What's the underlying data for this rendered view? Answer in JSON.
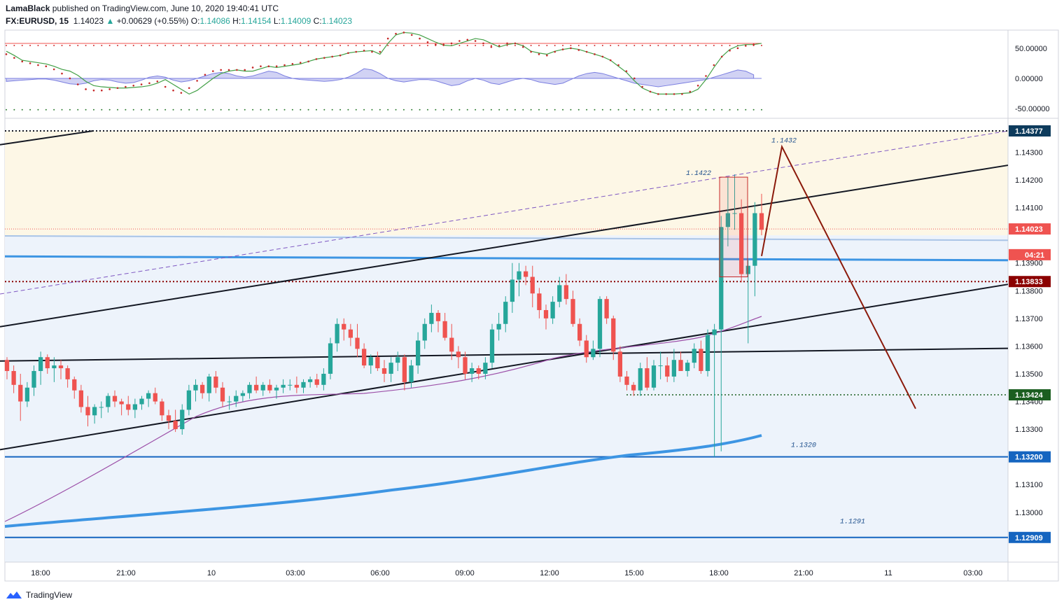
{
  "header": {
    "author": "LamaBlack",
    "published_text": "published on TradingView.com, June 10, 2020 19:40:41 UTC",
    "symbol": "FX:EURUSD, 15",
    "last": "1.14023",
    "change": "+0.00629 (+0.55%)",
    "open_label": "O:",
    "open": "1.14086",
    "high_label": "H:",
    "high": "1.14154",
    "low_label": "L:",
    "low": "1.14009",
    "close_label": "C:",
    "close": "1.14023"
  },
  "footer": {
    "brand": "TradingView"
  },
  "colors": {
    "up": "#26a69a",
    "down": "#ef5350",
    "zone": "#fdf7e6",
    "zone_blue": "#edf3fb",
    "trend": "#131722",
    "arrow": "#8b1a0b",
    "blue_line": "#3d95e3",
    "ma": "#9c4fa8"
  },
  "chart_data": [
    {
      "type": "candlestick",
      "symbol": "FX:EURUSD",
      "timeframe": "15",
      "ylim": [
        1.1282,
        1.1442
      ],
      "y_ticks": [
        "1.13000",
        "1.13100",
        "1.13300",
        "1.13400",
        "1.13500",
        "1.13600",
        "1.13700",
        "1.13800",
        "1.13900",
        "1.14100",
        "1.14200",
        "1.14300"
      ],
      "x_ticks": [
        "18:00",
        "21:00",
        "10",
        "03:00",
        "06:00",
        "09:00",
        "12:00",
        "15:00",
        "18:00",
        "21:00",
        "11",
        "03:00"
      ],
      "price_labels": [
        {
          "text": "1.14377",
          "value": 1.14377,
          "color": "#0d3b5c"
        },
        {
          "text": "1.14023",
          "value": 1.14023,
          "color": "#ef5350"
        },
        {
          "text": "04:21",
          "value": 1.1393,
          "color": "#ef5350"
        },
        {
          "text": "1.13833",
          "value": 1.13833,
          "color": "#8b0000"
        },
        {
          "text": "1.13424",
          "value": 1.13424,
          "color": "#1b5e20"
        },
        {
          "text": "1.13200",
          "value": 1.132,
          "color": "#1565c0"
        },
        {
          "text": "1.12909",
          "value": 1.12909,
          "color": "#1565c0"
        }
      ],
      "annotations": [
        {
          "text": "1.1432",
          "value": 1.1432
        },
        {
          "text": "1.1422",
          "value": 1.1422
        },
        {
          "text": "1.1320",
          "value": 1.132
        },
        {
          "text": "1.1291",
          "value": 1.1291
        }
      ],
      "candles": [
        [
          1.1355,
          1.1356,
          1.1348,
          1.1351
        ],
        [
          1.1351,
          1.1353,
          1.1343,
          1.1346
        ],
        [
          1.1346,
          1.135,
          1.1333,
          1.134
        ],
        [
          1.134,
          1.1347,
          1.1338,
          1.1345
        ],
        [
          1.1345,
          1.1353,
          1.1342,
          1.1351
        ],
        [
          1.1351,
          1.1358,
          1.1346,
          1.1356
        ],
        [
          1.1356,
          1.1357,
          1.135,
          1.1352
        ],
        [
          1.1352,
          1.1356,
          1.1347,
          1.1353
        ],
        [
          1.1353,
          1.1355,
          1.1348,
          1.1352
        ],
        [
          1.1352,
          1.1353,
          1.1345,
          1.1348
        ],
        [
          1.1348,
          1.1349,
          1.1341,
          1.1344
        ],
        [
          1.1344,
          1.1346,
          1.1336,
          1.1338
        ],
        [
          1.1338,
          1.1342,
          1.1331,
          1.1335
        ],
        [
          1.1335,
          1.1339,
          1.1332,
          1.1338
        ],
        [
          1.1338,
          1.134,
          1.1334,
          1.1338
        ],
        [
          1.1338,
          1.1343,
          1.1336,
          1.1342
        ],
        [
          1.1342,
          1.1344,
          1.1338,
          1.134
        ],
        [
          1.134,
          1.1341,
          1.1335,
          1.1339
        ],
        [
          1.1339,
          1.1342,
          1.1335,
          1.1337
        ],
        [
          1.1337,
          1.1341,
          1.1334,
          1.1339
        ],
        [
          1.1339,
          1.1342,
          1.1337,
          1.1341
        ],
        [
          1.1341,
          1.1344,
          1.1338,
          1.1343
        ],
        [
          1.1343,
          1.1345,
          1.1339,
          1.134
        ],
        [
          1.134,
          1.1341,
          1.1333,
          1.1335
        ],
        [
          1.1335,
          1.1337,
          1.133,
          1.1333
        ],
        [
          1.1333,
          1.1337,
          1.1329,
          1.133
        ],
        [
          1.133,
          1.1339,
          1.1328,
          1.1337
        ],
        [
          1.1337,
          1.1346,
          1.1335,
          1.1344
        ],
        [
          1.1344,
          1.1348,
          1.134,
          1.1346
        ],
        [
          1.1346,
          1.1347,
          1.1341,
          1.1343
        ],
        [
          1.1343,
          1.135,
          1.134,
          1.1349
        ],
        [
          1.1349,
          1.1351,
          1.1343,
          1.1345
        ],
        [
          1.1345,
          1.1347,
          1.1338,
          1.134
        ],
        [
          1.134,
          1.1342,
          1.1337,
          1.134
        ],
        [
          1.134,
          1.1344,
          1.1338,
          1.1342
        ],
        [
          1.1342,
          1.1344,
          1.134,
          1.1343
        ],
        [
          1.1343,
          1.1347,
          1.1341,
          1.1346
        ],
        [
          1.1346,
          1.1349,
          1.1343,
          1.1344
        ],
        [
          1.1344,
          1.1347,
          1.1342,
          1.1346
        ],
        [
          1.1346,
          1.1348,
          1.1343,
          1.1344
        ],
        [
          1.1344,
          1.1346,
          1.1341,
          1.1345
        ],
        [
          1.1345,
          1.1348,
          1.1343,
          1.1346
        ],
        [
          1.1346,
          1.1348,
          1.1344,
          1.1346
        ],
        [
          1.1346,
          1.1349,
          1.1343,
          1.1345
        ],
        [
          1.1345,
          1.1348,
          1.1343,
          1.1347
        ],
        [
          1.1347,
          1.1349,
          1.1345,
          1.1348
        ],
        [
          1.1348,
          1.135,
          1.1345,
          1.1346
        ],
        [
          1.1346,
          1.1352,
          1.1344,
          1.135
        ],
        [
          1.135,
          1.1363,
          1.1348,
          1.1361
        ],
        [
          1.1361,
          1.137,
          1.1358,
          1.1368
        ],
        [
          1.1368,
          1.137,
          1.1362,
          1.1366
        ],
        [
          1.1366,
          1.1368,
          1.136,
          1.1363
        ],
        [
          1.1363,
          1.1368,
          1.1356,
          1.1359
        ],
        [
          1.1359,
          1.1361,
          1.1352,
          1.1353
        ],
        [
          1.1353,
          1.1357,
          1.135,
          1.1356
        ],
        [
          1.1356,
          1.1358,
          1.1351,
          1.1352
        ],
        [
          1.1352,
          1.1355,
          1.1347,
          1.135
        ],
        [
          1.135,
          1.1356,
          1.1347,
          1.1354
        ],
        [
          1.1354,
          1.1358,
          1.1351,
          1.1356
        ],
        [
          1.1356,
          1.1357,
          1.1344,
          1.1347
        ],
        [
          1.1347,
          1.1355,
          1.1345,
          1.1353
        ],
        [
          1.1353,
          1.1365,
          1.135,
          1.1362
        ],
        [
          1.1362,
          1.137,
          1.1359,
          1.1368
        ],
        [
          1.1368,
          1.1375,
          1.1365,
          1.1372
        ],
        [
          1.1372,
          1.1373,
          1.1365,
          1.1369
        ],
        [
          1.1369,
          1.1372,
          1.1362,
          1.1363
        ],
        [
          1.1363,
          1.1368,
          1.1355,
          1.1358
        ],
        [
          1.1358,
          1.136,
          1.1352,
          1.1356
        ],
        [
          1.1356,
          1.1358,
          1.1348,
          1.135
        ],
        [
          1.135,
          1.1354,
          1.1347,
          1.1352
        ],
        [
          1.1352,
          1.1353,
          1.1348,
          1.135
        ],
        [
          1.135,
          1.1356,
          1.1348,
          1.1354
        ],
        [
          1.1354,
          1.1368,
          1.1352,
          1.1366
        ],
        [
          1.1366,
          1.1372,
          1.1362,
          1.1368
        ],
        [
          1.1368,
          1.1378,
          1.1365,
          1.1376
        ],
        [
          1.1376,
          1.139,
          1.1372,
          1.1384
        ],
        [
          1.1384,
          1.139,
          1.1378,
          1.1387
        ],
        [
          1.1387,
          1.1389,
          1.1382,
          1.1385
        ],
        [
          1.1385,
          1.1389,
          1.1374,
          1.1379
        ],
        [
          1.1379,
          1.1381,
          1.137,
          1.1373
        ],
        [
          1.1373,
          1.1375,
          1.1366,
          1.137
        ],
        [
          1.137,
          1.1378,
          1.1368,
          1.1376
        ],
        [
          1.1376,
          1.1385,
          1.1374,
          1.1382
        ],
        [
          1.1382,
          1.1386,
          1.1375,
          1.1377
        ],
        [
          1.1377,
          1.138,
          1.1367,
          1.1368
        ],
        [
          1.1368,
          1.137,
          1.136,
          1.1362
        ],
        [
          1.1362,
          1.1364,
          1.1354,
          1.1356
        ],
        [
          1.1356,
          1.1362,
          1.1355,
          1.1359
        ],
        [
          1.1359,
          1.1378,
          1.1356,
          1.1377
        ],
        [
          1.1377,
          1.1378,
          1.1368,
          1.137
        ],
        [
          1.137,
          1.1371,
          1.1355,
          1.1358
        ],
        [
          1.1358,
          1.136,
          1.1347,
          1.1349
        ],
        [
          1.1349,
          1.1351,
          1.1344,
          1.1346
        ],
        [
          1.1346,
          1.1347,
          1.1342,
          1.1344
        ],
        [
          1.1344,
          1.1354,
          1.1342,
          1.1352
        ],
        [
          1.1352,
          1.1356,
          1.1344,
          1.1345
        ],
        [
          1.1345,
          1.1355,
          1.1344,
          1.1353
        ],
        [
          1.1353,
          1.1358,
          1.1348,
          1.1353
        ],
        [
          1.1353,
          1.1356,
          1.1347,
          1.1349
        ],
        [
          1.1349,
          1.1359,
          1.1347,
          1.1355
        ],
        [
          1.1355,
          1.1358,
          1.1352,
          1.1351
        ],
        [
          1.1351,
          1.1355,
          1.1349,
          1.1354
        ],
        [
          1.1354,
          1.1361,
          1.1352,
          1.1359
        ],
        [
          1.1359,
          1.1362,
          1.135,
          1.1351
        ],
        [
          1.1351,
          1.1366,
          1.1349,
          1.1364
        ],
        [
          1.1364,
          1.1368,
          1.132,
          1.1366
        ],
        [
          1.1366,
          1.1407,
          1.1322,
          1.1403
        ],
        [
          1.1403,
          1.1421,
          1.1396,
          1.1408
        ],
        [
          1.1408,
          1.1422,
          1.1402,
          1.1408
        ],
        [
          1.1408,
          1.1413,
          1.1383,
          1.1386
        ],
        [
          1.1386,
          1.1391,
          1.1361,
          1.1389
        ],
        [
          1.1389,
          1.1412,
          1.1378,
          1.1408
        ],
        [
          1.1408,
          1.1415,
          1.14,
          1.1402
        ]
      ],
      "drawings": [
        {
          "type": "trendline",
          "x": [
            0,
            133
          ],
          "y": [
            1.14327,
            1.14377
          ]
        },
        {
          "type": "trendline",
          "x": [
            0,
            1440
          ],
          "y": [
            1.1367,
            1.14253
          ]
        },
        {
          "type": "trendline",
          "x": [
            0,
            1440
          ],
          "y": [
            1.13226,
            1.13823
          ]
        },
        {
          "type": "trendline",
          "x": [
            0,
            1440
          ],
          "y": [
            1.13546,
            1.13592
          ]
        },
        {
          "type": "dashed_trendline",
          "x": [
            0,
            1440
          ],
          "y": [
            1.13788,
            1.14377
          ]
        }
      ]
    },
    {
      "type": "line",
      "panel": "oscillator",
      "y_ticks": [
        "50.00000",
        "0.00000",
        "-50.00000"
      ],
      "ylim": [
        -65,
        80
      ],
      "upper_band": 58,
      "lower_band": -52,
      "series": [
        {
          "color": "#43a047",
          "values": [
            45,
            38,
            30,
            28,
            26,
            24,
            20,
            15,
            12,
            5,
            -5,
            -12,
            -14,
            -15,
            -16,
            -16,
            -15,
            -14,
            -12,
            -8,
            -2,
            -10,
            -18,
            -26,
            -20,
            -10,
            0,
            8,
            12,
            14,
            12,
            12,
            16,
            20,
            18,
            20,
            22,
            24,
            28,
            32,
            34,
            36,
            38,
            42,
            44,
            45,
            46,
            40,
            58,
            72,
            76,
            75,
            72,
            66,
            60,
            55,
            54,
            58,
            62,
            66,
            64,
            58,
            52,
            56,
            58,
            54,
            45,
            42,
            40,
            45,
            48,
            50,
            48,
            44,
            40,
            36,
            30,
            20,
            10,
            -4,
            -16,
            -22,
            -26,
            -26,
            -26,
            -25,
            -24,
            -18,
            -2,
            18,
            36,
            48,
            54,
            56,
            56,
            58
          ]
        },
        {
          "color": "#c62828",
          "values": [
            40,
            34,
            28,
            25,
            22,
            20,
            15,
            8,
            0,
            -10,
            -18,
            -20,
            -20,
            -18,
            -16,
            -14,
            -12,
            -10,
            -8,
            -5,
            -14,
            -20,
            -24,
            -16,
            -4,
            6,
            12,
            14,
            14,
            14,
            14,
            18,
            20,
            20,
            20,
            22,
            24,
            26,
            28,
            32,
            34,
            36,
            38,
            42,
            44,
            46,
            44,
            44,
            66,
            74,
            76,
            72,
            66,
            60,
            56,
            56,
            58,
            62,
            64,
            62,
            58,
            52,
            54,
            58,
            58,
            52,
            44,
            40,
            38,
            44,
            48,
            50,
            47,
            44,
            40,
            36,
            30,
            22,
            12,
            0,
            -14,
            -22,
            -26,
            -26,
            -26,
            -26,
            -22,
            -12,
            4,
            22,
            36,
            46,
            50,
            54,
            56
          ]
        },
        {
          "type": "area",
          "color": "#7b7fe0",
          "values": [
            -5,
            -4,
            -3,
            -2,
            -1,
            -1,
            -3,
            -6,
            -9,
            -10,
            -8,
            -4,
            -2,
            -3,
            -6,
            -8,
            -7,
            -3,
            2,
            4,
            2,
            -3,
            -6,
            -4,
            0,
            4,
            8,
            10,
            8,
            4,
            2,
            4,
            8,
            12,
            10,
            4,
            0,
            -2,
            -3,
            -4,
            -5,
            -4,
            -2,
            2,
            8,
            16,
            14,
            8,
            0,
            -4,
            -6,
            -4,
            -2,
            -2,
            -4,
            -8,
            -12,
            -10,
            -4,
            0,
            -3,
            -8,
            -10,
            -6,
            -2,
            0,
            -2,
            -6,
            -8,
            -10,
            -8,
            -2,
            4,
            8,
            10,
            8,
            4,
            0,
            -4,
            -8,
            -10,
            -12,
            -14,
            -12,
            -10,
            -8,
            -6,
            -4,
            -2,
            2,
            6,
            10,
            14,
            12,
            6
          ]
        }
      ]
    }
  ]
}
